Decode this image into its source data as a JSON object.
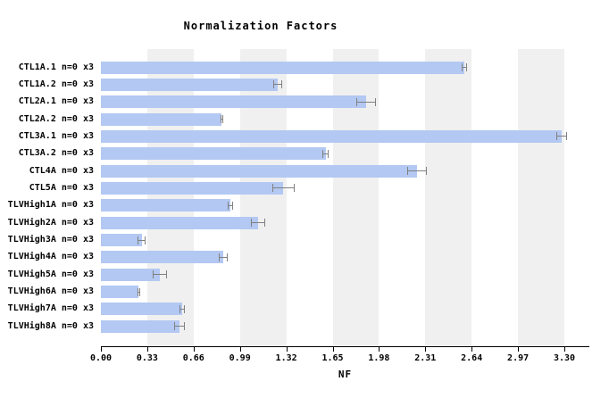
{
  "chart_data": {
    "type": "bar",
    "orientation": "horizontal",
    "title": "Normalization Factors",
    "xlabel": "NF",
    "categories": [
      "CTL1A.1 n=0 x3",
      "CTL1A.2 n=0 x3",
      "CTL2A.1 n=0 x3",
      "CTL2A.2 n=0 x3",
      "CTL3A.1 n=0 x3",
      "CTL3A.2 n=0 x3",
      "CTL4A n=0 x3",
      "CTL5A n=0 x3",
      "TLVHigh1A n=0 x3",
      "TLVHigh2A n=0 x3",
      "TLVHigh3A n=0 x3",
      "TLVHigh4A n=0 x3",
      "TLVHigh5A n=0 x3",
      "TLVHigh6A n=0 x3",
      "TLVHigh7A n=0 x3",
      "TLVHigh8A n=0 x3"
    ],
    "values": [
      2.59,
      1.26,
      1.89,
      0.86,
      3.28,
      1.6,
      2.25,
      1.3,
      0.92,
      1.12,
      0.29,
      0.87,
      0.42,
      0.27,
      0.58,
      0.56
    ],
    "errors": [
      0.02,
      0.03,
      0.07,
      0.01,
      0.04,
      0.02,
      0.07,
      0.08,
      0.02,
      0.05,
      0.03,
      0.03,
      0.05,
      0.01,
      0.02,
      0.04
    ],
    "xlim": [
      0,
      3.48
    ],
    "xticks": [
      0.0,
      0.33,
      0.66,
      0.99,
      1.32,
      1.65,
      1.98,
      2.31,
      2.64,
      2.97,
      3.3
    ],
    "xtick_labels": [
      "0.00",
      "0.33",
      "0.66",
      "0.99",
      "1.32",
      "1.65",
      "1.98",
      "2.31",
      "2.64",
      "2.97",
      "3.30"
    ],
    "shaded_bands": [
      [
        0.33,
        0.66
      ],
      [
        0.99,
        1.32
      ],
      [
        1.65,
        1.98
      ],
      [
        2.31,
        2.64
      ],
      [
        2.97,
        3.3
      ]
    ],
    "grid": "off",
    "legend": "none",
    "colors": {
      "bar": "#b3c8f2",
      "band": "#f0f0f0",
      "error": "#808080",
      "axis": "#000000",
      "background": "#ffffff",
      "text": "#000000"
    }
  }
}
